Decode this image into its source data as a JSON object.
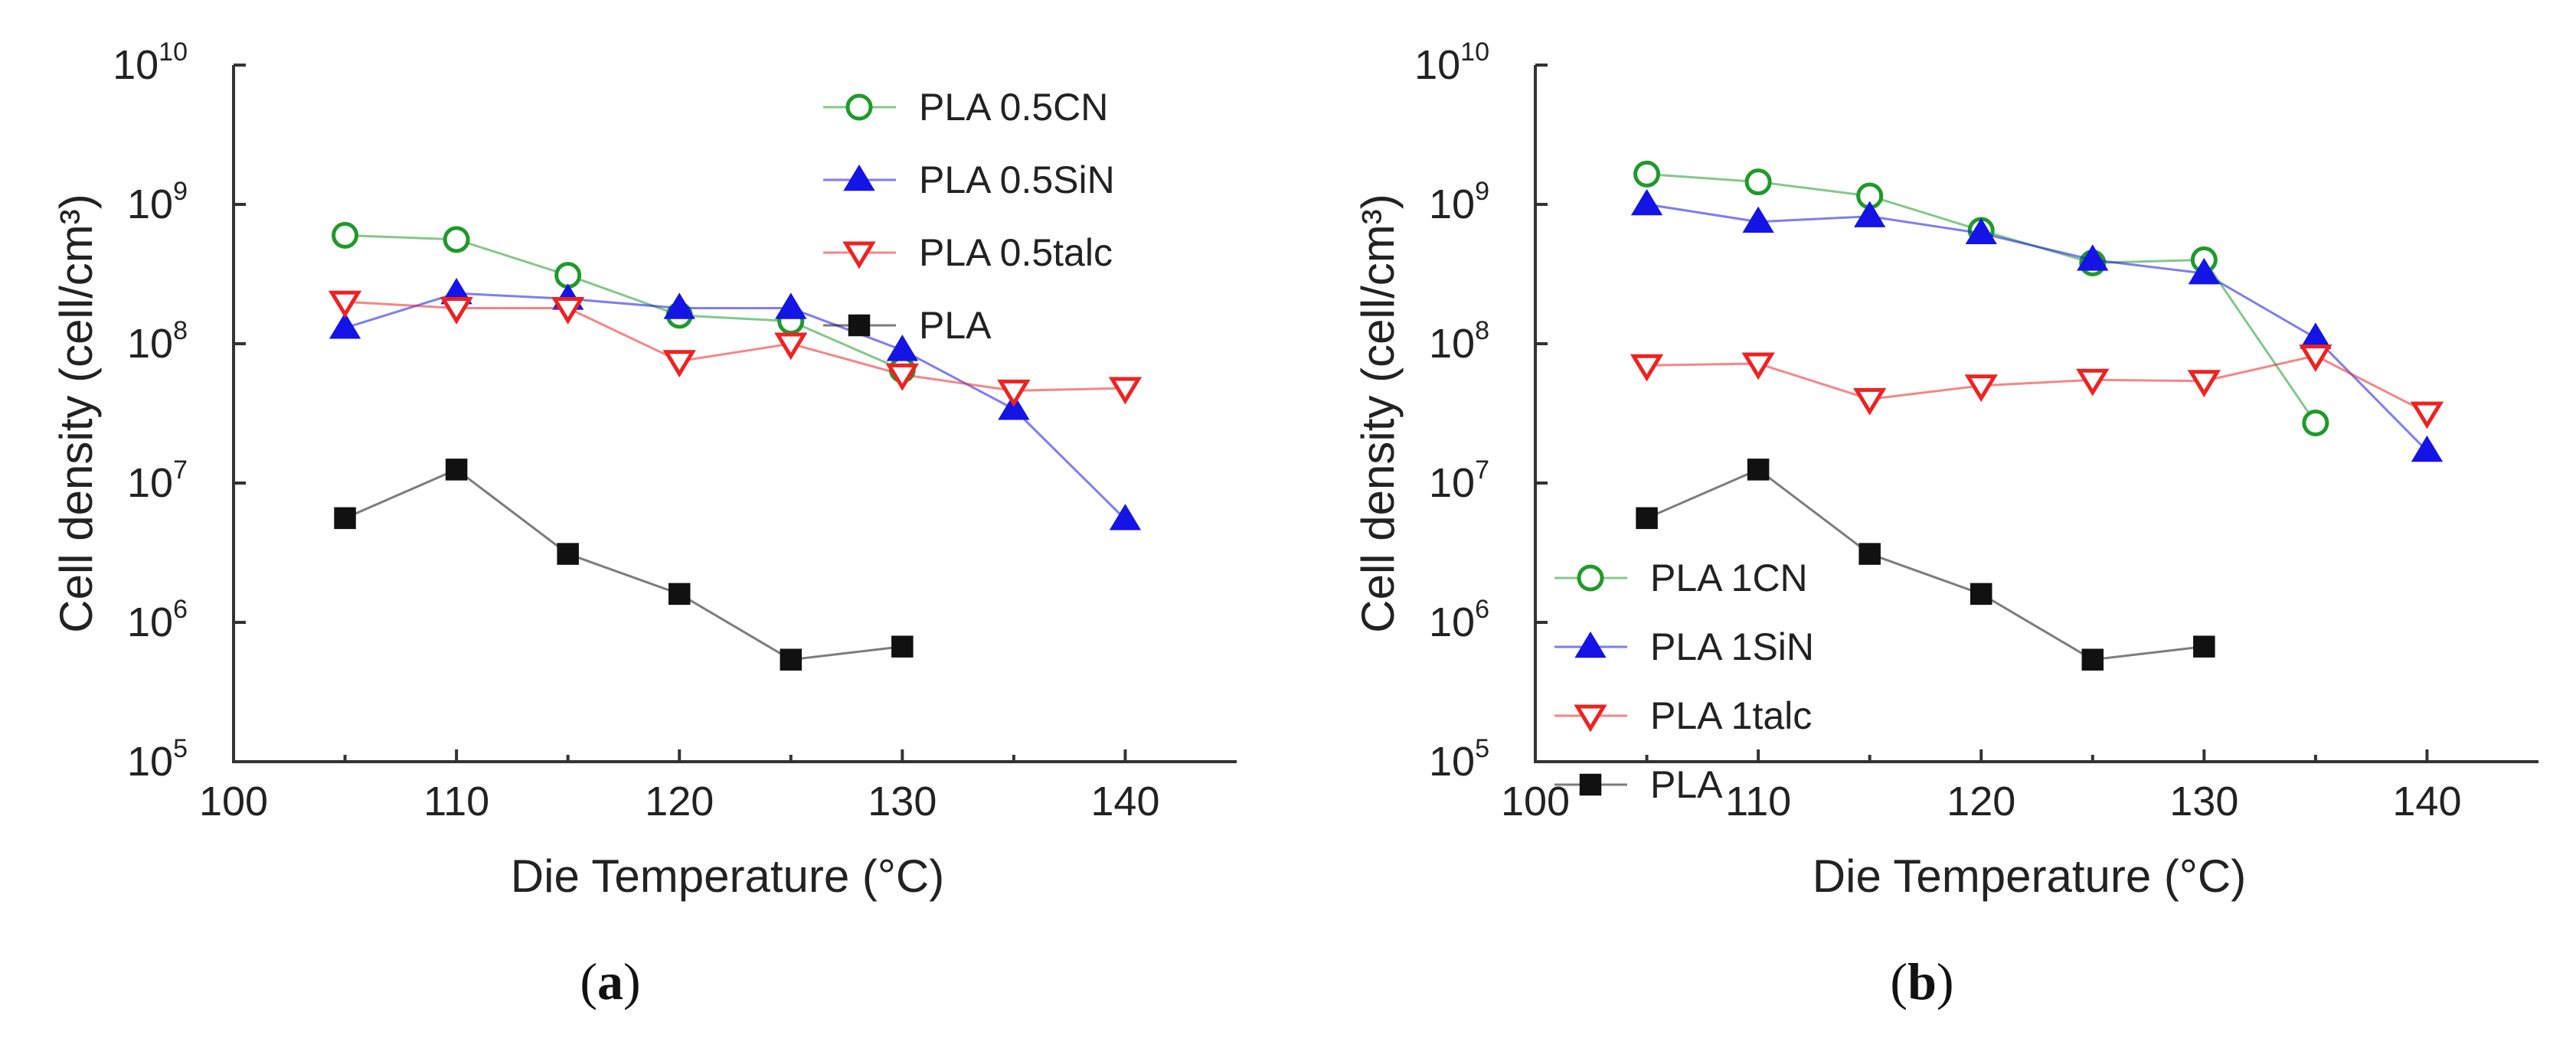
{
  "chart_data": [
    {
      "type": "line",
      "panel_label": "a",
      "xlabel": "Die Temperature (°C)",
      "ylabel": "Cell density (cell/cm³)",
      "y_scale": "log",
      "xlim": [
        100,
        145
      ],
      "ylim": [
        100000,
        10000000000
      ],
      "x_ticks": [
        100,
        110,
        120,
        130,
        140
      ],
      "y_tick_exponents": [
        5,
        6,
        7,
        8,
        9,
        10
      ],
      "y_tick_base": "10",
      "legend_position": "top-right",
      "series": [
        {
          "name": "PLA 0.5CN",
          "marker": "circle-open",
          "color": "#1f9a2a",
          "x": [
            105,
            110,
            115,
            120,
            125,
            130
          ],
          "y": [
            600000000,
            560000000,
            310000000,
            160000000,
            145000000,
            65000000
          ]
        },
        {
          "name": "PLA 0.5SiN",
          "marker": "triangle-up-filled",
          "color": "#1414e6",
          "x": [
            105,
            110,
            115,
            120,
            125,
            130,
            135,
            140
          ],
          "y": [
            130000000,
            230000000,
            210000000,
            180000000,
            180000000,
            90000000,
            34000000,
            5500000
          ]
        },
        {
          "name": "PLA 0.5talc",
          "marker": "triangle-down-open",
          "color": "#ee2222",
          "x": [
            105,
            110,
            115,
            120,
            125,
            130,
            135,
            140
          ],
          "y": [
            200000000,
            180000000,
            180000000,
            75000000,
            100000000,
            60000000,
            46000000,
            48000000
          ]
        },
        {
          "name": "PLA",
          "marker": "square-filled",
          "color": "#111111",
          "x": [
            105,
            110,
            115,
            120,
            125,
            130
          ],
          "y": [
            5600000,
            12500000,
            3100000,
            1600000,
            540000,
            670000
          ]
        }
      ]
    },
    {
      "type": "line",
      "panel_label": "b",
      "xlabel": "Die Temperature (°C)",
      "ylabel": "Cell density (cell/cm³)",
      "y_scale": "log",
      "xlim": [
        100,
        145
      ],
      "ylim": [
        100000,
        10000000000
      ],
      "x_ticks": [
        100,
        110,
        120,
        130,
        140
      ],
      "y_tick_exponents": [
        5,
        6,
        7,
        8,
        9,
        10
      ],
      "y_tick_base": "10",
      "legend_position": "bottom-left",
      "series": [
        {
          "name": "PLA 1CN",
          "marker": "circle-open",
          "color": "#1f9a2a",
          "x": [
            105,
            110,
            115,
            120,
            125,
            130,
            135
          ],
          "y": [
            1650000000,
            1450000000,
            1150000000,
            650000000,
            380000000,
            400000000,
            27000000
          ]
        },
        {
          "name": "PLA 1SiN",
          "marker": "triangle-up-filled",
          "color": "#1414e6",
          "x": [
            105,
            110,
            115,
            120,
            125,
            130,
            135,
            140
          ],
          "y": [
            1000000000,
            750000000,
            820000000,
            620000000,
            400000000,
            320000000,
            110000000,
            17000000
          ]
        },
        {
          "name": "PLA 1talc",
          "marker": "triangle-down-open",
          "color": "#ee2222",
          "x": [
            105,
            110,
            115,
            120,
            125,
            130,
            135,
            140
          ],
          "y": [
            70000000,
            72000000,
            40000000,
            50000000,
            55000000,
            54000000,
            82000000,
            32000000
          ]
        },
        {
          "name": "PLA",
          "marker": "square-filled",
          "color": "#111111",
          "x": [
            105,
            110,
            115,
            120,
            125,
            130
          ],
          "y": [
            5600000,
            12500000,
            3100000,
            1600000,
            540000,
            670000
          ]
        }
      ]
    }
  ]
}
